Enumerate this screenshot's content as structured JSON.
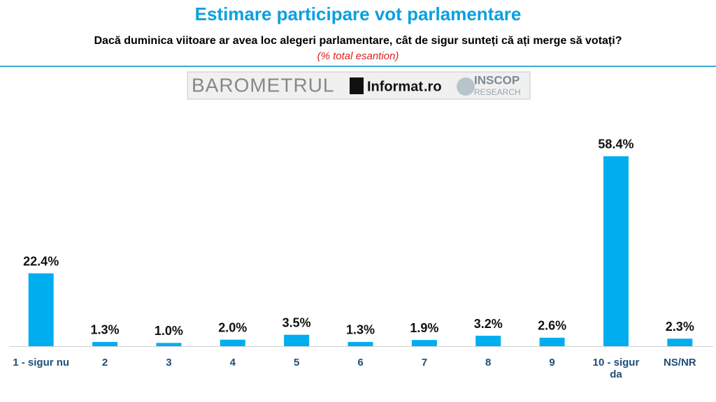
{
  "chart_data": {
    "type": "bar",
    "title": "Estimare participare vot parlamentare",
    "subtitle": "Dacă duminica viitoare ar avea loc alegeri parlamentare, cât de sigur sunteți că ați merge să votați?",
    "note": "(% total esantion)",
    "logos": [
      "BAROMETRUL",
      "Informat",
      ".ro",
      "INSCOP",
      "RESEARCH"
    ],
    "categories": [
      "1 - sigur nu",
      "2",
      "3",
      "4",
      "5",
      "6",
      "7",
      "8",
      "9",
      "10 - sigur da",
      "NS/NR"
    ],
    "values": [
      22.4,
      1.3,
      1.0,
      2.0,
      3.5,
      1.3,
      1.9,
      3.2,
      2.6,
      58.4,
      2.3
    ],
    "value_labels": [
      "22.4%",
      "1.3%",
      "1.0%",
      "2.0%",
      "3.5%",
      "1.3%",
      "1.9%",
      "3.2%",
      "2.6%",
      "58.4%",
      "2.3%"
    ],
    "color": "#00aeef"
  }
}
